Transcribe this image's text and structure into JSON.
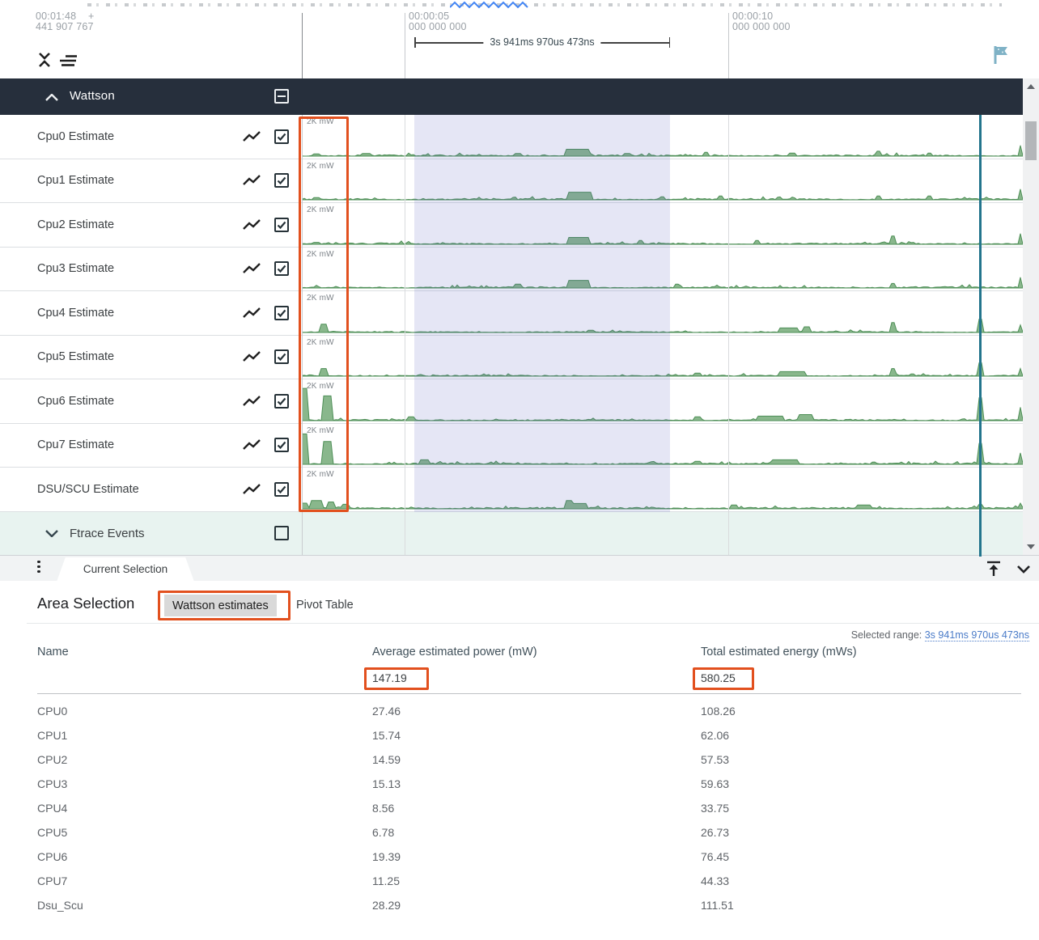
{
  "colors": {
    "annot": "#e2501e",
    "green_fill": "#74aa78",
    "green_stroke": "#4e8f57",
    "sel_overlay": "rgba(96,100,190,0.16)",
    "teal": "#23758d",
    "hdr_bg": "#262f3c",
    "ftrace_bg": "#e8f3f0",
    "link": "#4a7bc8",
    "flag": "#7fb2c6",
    "squiggle": "#4285f4"
  },
  "icons": {
    "collapse_tracks": "unfold-less-icon",
    "track_filter": "sort-lines-icon",
    "flag": "flag-icon",
    "line_chart": "line-chart-icon",
    "menu_dots": "vertical-dots-icon",
    "dock_top": "vertical-align-top-icon",
    "collapse_panel": "chevron-down-icon"
  },
  "ruler": {
    "left_time": "00:01:48",
    "left_plus": "+",
    "left_ns": "441 907 767",
    "ticks": [
      {
        "time": "00:00:05",
        "ns": "000 000 000"
      },
      {
        "time": "00:00:10",
        "ns": "000 000 000"
      }
    ],
    "bracket_label": "3s 941ms 970us 473ns"
  },
  "timeline": {
    "group_header": {
      "title": "Wattson",
      "checkbox_state": "indeterminate"
    },
    "tracks": [
      {
        "name": "Cpu0 Estimate",
        "scale_label": "2K mW",
        "checked": true,
        "noise": 1,
        "peaks": [
          [
            0.02,
            0.06,
            0.01
          ],
          [
            0.09,
            0.07,
            0.015
          ],
          [
            0.3,
            0.07,
            0.01
          ],
          [
            0.383,
            0.18,
            0.035
          ],
          [
            0.45,
            0.07,
            0.01
          ],
          [
            0.56,
            0.1,
            0.006
          ],
          [
            0.68,
            0.08,
            0.01
          ],
          [
            0.8,
            0.13,
            0.005
          ],
          [
            0.87,
            0.08,
            0.006
          ],
          [
            0.997,
            0.28,
            0.005
          ]
        ]
      },
      {
        "name": "Cpu1 Estimate",
        "scale_label": "2K mW",
        "checked": true,
        "noise": 1,
        "peaks": [
          [
            0.02,
            0.06,
            0.012
          ],
          [
            0.385,
            0.2,
            0.032
          ],
          [
            0.5,
            0.08,
            0.01
          ],
          [
            0.58,
            0.1,
            0.008
          ],
          [
            0.8,
            0.1,
            0.005
          ],
          [
            0.87,
            0.1,
            0.006
          ],
          [
            0.997,
            0.28,
            0.005
          ]
        ]
      },
      {
        "name": "Cpu2 Estimate",
        "scale_label": "2K mW",
        "checked": true,
        "noise": 1,
        "peaks": [
          [
            0.02,
            0.05,
            0.012
          ],
          [
            0.385,
            0.18,
            0.03
          ],
          [
            0.47,
            0.1,
            0.008
          ],
          [
            0.63,
            0.1,
            0.006
          ],
          [
            0.82,
            0.22,
            0.006
          ],
          [
            0.997,
            0.28,
            0.005
          ]
        ]
      },
      {
        "name": "Cpu3 Estimate",
        "scale_label": "2K mW",
        "checked": true,
        "noise": 1,
        "peaks": [
          [
            0.3,
            0.1,
            0.008
          ],
          [
            0.385,
            0.2,
            0.03
          ],
          [
            0.52,
            0.1,
            0.008
          ],
          [
            0.82,
            0.12,
            0.006
          ],
          [
            0.997,
            0.28,
            0.005
          ]
        ]
      },
      {
        "name": "Cpu4 Estimate",
        "scale_label": "2K mW",
        "checked": true,
        "noise": 0.8,
        "peaks": [
          [
            0.03,
            0.22,
            0.008
          ],
          [
            0.4,
            0.06,
            0.01
          ],
          [
            0.675,
            0.12,
            0.03
          ],
          [
            0.7,
            0.15,
            0.01
          ],
          [
            0.82,
            0.26,
            0.005
          ],
          [
            0.94,
            0.35,
            0.006
          ],
          [
            0.997,
            0.2,
            0.005
          ]
        ]
      },
      {
        "name": "Cpu5 Estimate",
        "scale_label": "2K mW",
        "checked": true,
        "noise": 0.8,
        "peaks": [
          [
            0.03,
            0.2,
            0.008
          ],
          [
            0.55,
            0.08,
            0.01
          ],
          [
            0.68,
            0.12,
            0.035
          ],
          [
            0.82,
            0.2,
            0.005
          ],
          [
            0.94,
            0.35,
            0.006
          ],
          [
            0.997,
            0.2,
            0.005
          ]
        ]
      },
      {
        "name": "Cpu6 Estimate",
        "scale_label": "2K mW",
        "checked": true,
        "noise": 1,
        "peaks": [
          [
            0.004,
            0.85,
            0.01
          ],
          [
            0.036,
            0.65,
            0.012
          ],
          [
            0.15,
            0.1,
            0.01
          ],
          [
            0.55,
            0.1,
            0.01
          ],
          [
            0.65,
            0.12,
            0.04
          ],
          [
            0.7,
            0.16,
            0.02
          ],
          [
            0.94,
            0.6,
            0.007
          ],
          [
            0.997,
            0.35,
            0.005
          ]
        ]
      },
      {
        "name": "Cpu7 Estimate",
        "scale_label": "2K mW",
        "checked": true,
        "noise": 1,
        "peaks": [
          [
            0.004,
            0.8,
            0.01
          ],
          [
            0.036,
            0.6,
            0.012
          ],
          [
            0.17,
            0.12,
            0.015
          ],
          [
            0.55,
            0.08,
            0.01
          ],
          [
            0.67,
            0.12,
            0.04
          ],
          [
            0.94,
            0.55,
            0.007
          ],
          [
            0.997,
            0.3,
            0.005
          ]
        ]
      },
      {
        "name": "DSU/SCU Estimate",
        "scale_label": "2K mW",
        "checked": true,
        "noise": 1.2,
        "peaks": [
          [
            0.005,
            0.15,
            0.01
          ],
          [
            0.02,
            0.22,
            0.015
          ],
          [
            0.04,
            0.18,
            0.01
          ],
          [
            0.06,
            0.12,
            0.01
          ],
          [
            0.37,
            0.22,
            0.008
          ],
          [
            0.385,
            0.14,
            0.02
          ],
          [
            0.6,
            0.1,
            0.01
          ],
          [
            0.78,
            0.1,
            0.02
          ],
          [
            0.94,
            0.12,
            0.006
          ],
          [
            0.997,
            0.15,
            0.005
          ]
        ]
      }
    ],
    "ftrace_group": {
      "title": "Ftrace Events",
      "checked": false
    }
  },
  "tab_bar": {
    "current_tab": "Current Selection"
  },
  "details": {
    "heading": "Area Selection",
    "tabs": [
      {
        "label": "Wattson estimates",
        "active": true
      },
      {
        "label": "Pivot Table",
        "active": false
      }
    ],
    "selected_range_label": "Selected range:",
    "selected_range_value": "3s 941ms 970us 473ns",
    "table": {
      "columns": [
        "Name",
        "Average estimated power (mW)",
        "Total estimated energy (mWs)"
      ],
      "summary": {
        "avg": "147.19",
        "total": "580.25"
      },
      "rows": [
        {
          "name": "CPU0",
          "avg": "27.46",
          "total": "108.26"
        },
        {
          "name": "CPU1",
          "avg": "15.74",
          "total": "62.06"
        },
        {
          "name": "CPU2",
          "avg": "14.59",
          "total": "57.53"
        },
        {
          "name": "CPU3",
          "avg": "15.13",
          "total": "59.63"
        },
        {
          "name": "CPU4",
          "avg": "8.56",
          "total": "33.75"
        },
        {
          "name": "CPU5",
          "avg": "6.78",
          "total": "26.73"
        },
        {
          "name": "CPU6",
          "avg": "19.39",
          "total": "76.45"
        },
        {
          "name": "CPU7",
          "avg": "11.25",
          "total": "44.33"
        },
        {
          "name": "Dsu_Scu",
          "avg": "28.29",
          "total": "111.51"
        }
      ]
    }
  }
}
